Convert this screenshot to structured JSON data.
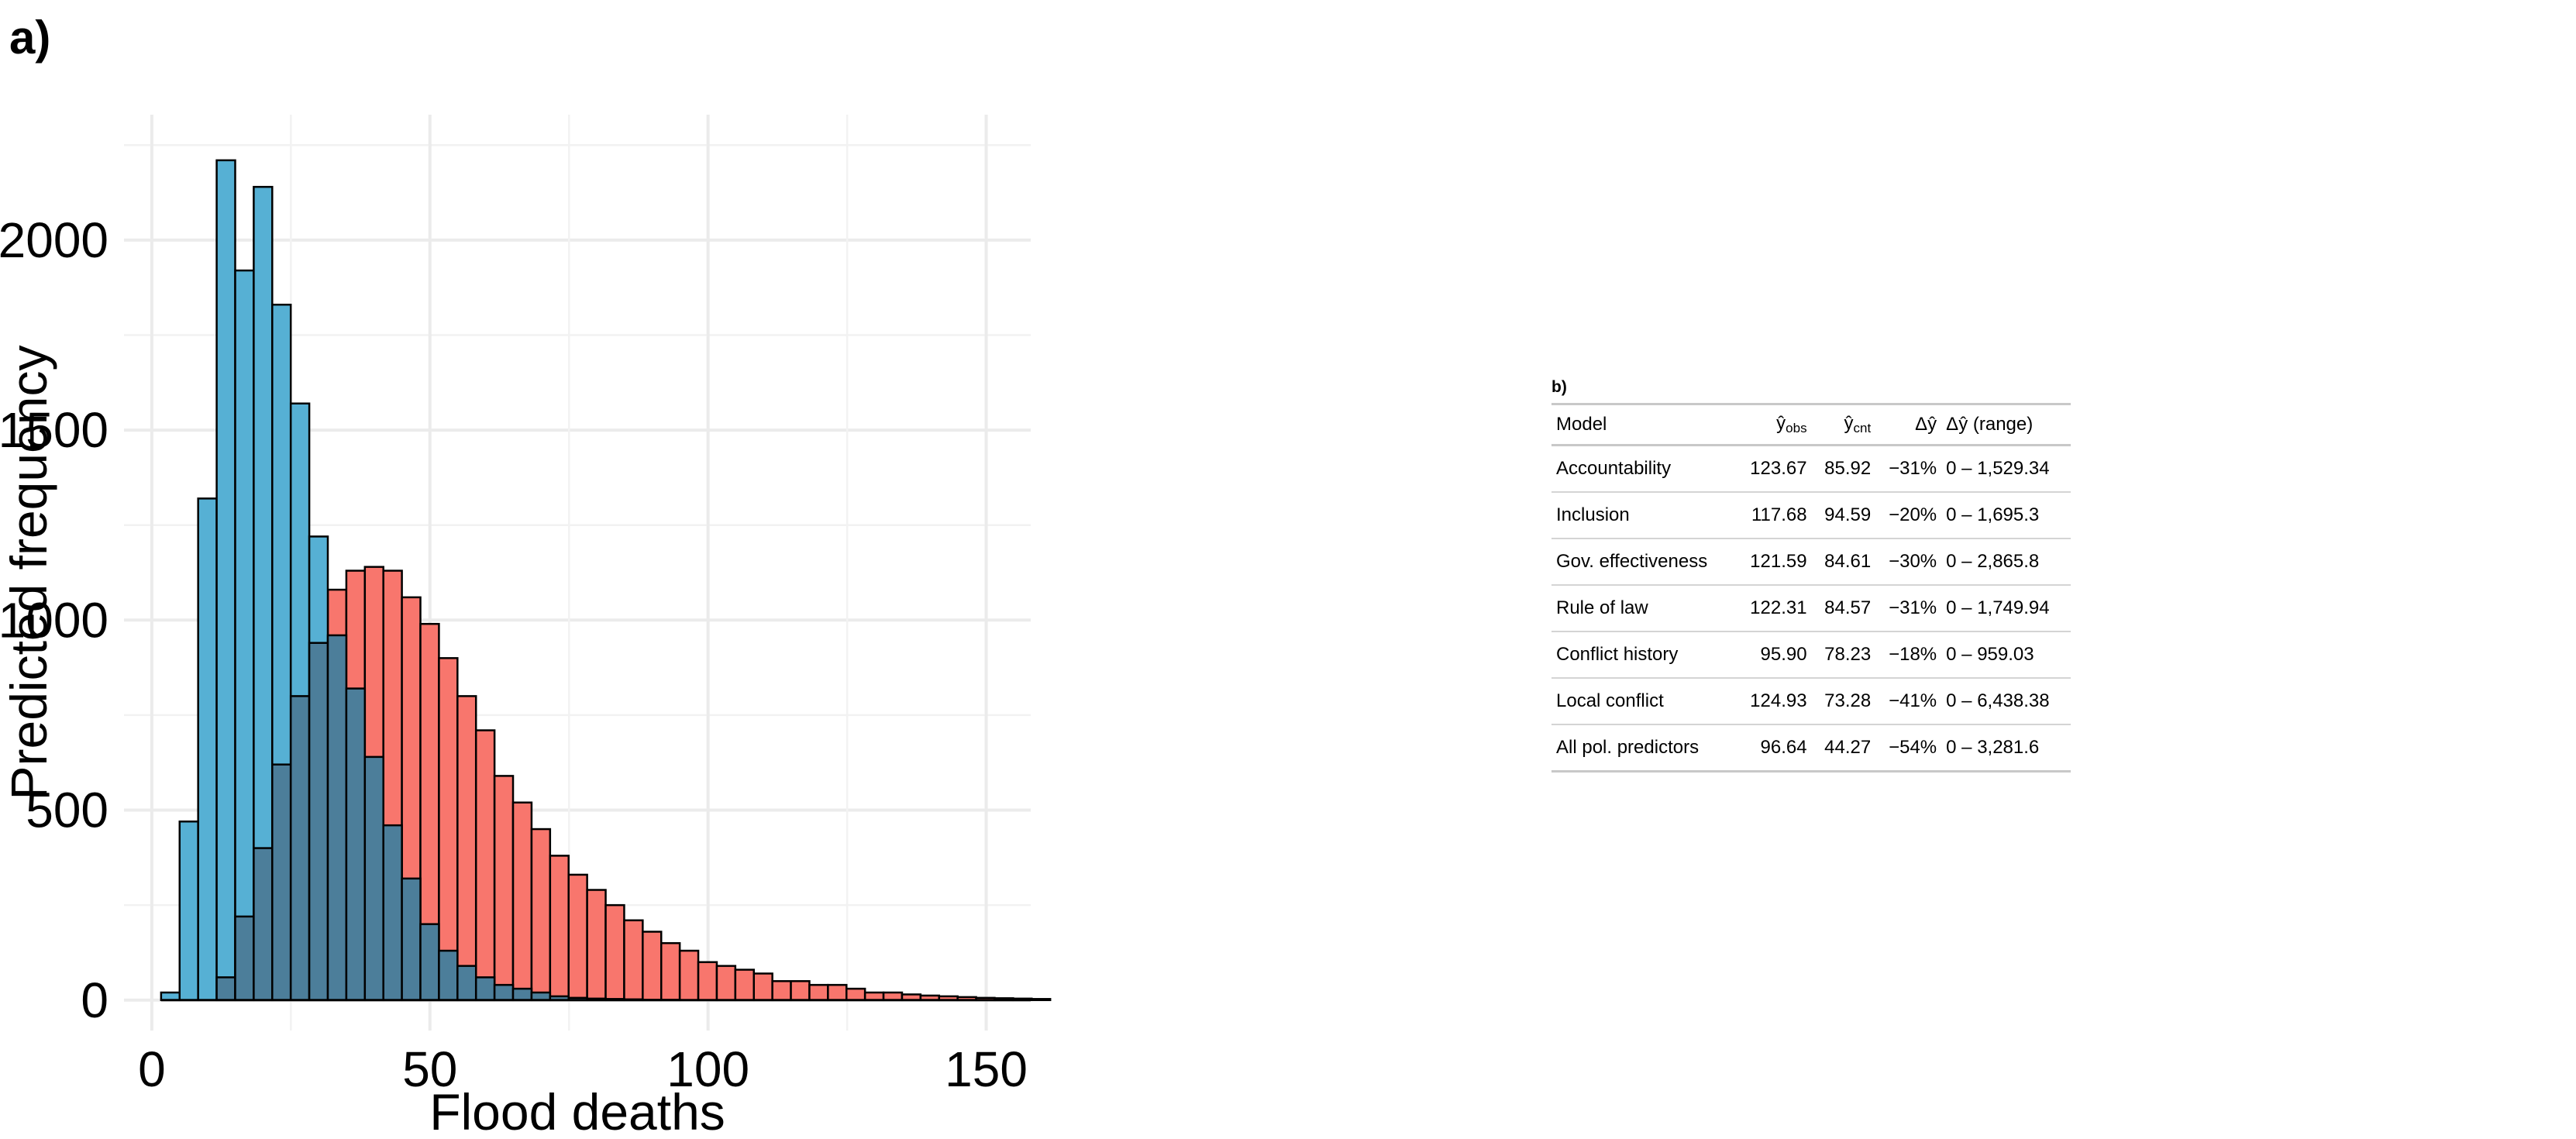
{
  "panel_a": {
    "label": "a)"
  },
  "panel_b": {
    "label": "b)"
  },
  "chart_data": [
    {
      "type": "histogram",
      "xlabel": "Flood deaths",
      "ylabel": "Predicted frequency",
      "xlim": [
        -5,
        158
      ],
      "ylim": [
        -80,
        2330
      ],
      "xticks": [
        0,
        50,
        100,
        150
      ],
      "yticks": [
        0,
        500,
        1000,
        1500,
        2000
      ],
      "grid": true,
      "legend": "none",
      "bin_width": 3.33,
      "bin_start": 1.67,
      "overlap_color": "#4c7e9a",
      "series": [
        {
          "color": "#f8766d",
          "values": [
            0,
            0,
            0,
            60,
            220,
            400,
            620,
            800,
            940,
            1080,
            1130,
            1140,
            1130,
            1060,
            990,
            900,
            800,
            710,
            590,
            520,
            450,
            380,
            330,
            290,
            250,
            210,
            180,
            150,
            130,
            100,
            90,
            80,
            70,
            50,
            50,
            40,
            40,
            30,
            20,
            20,
            15,
            12,
            10,
            8,
            6,
            5,
            4,
            3
          ]
        },
        {
          "color": "#56b0d4",
          "values": [
            20,
            470,
            1320,
            2210,
            1920,
            2140,
            1830,
            1570,
            1220,
            960,
            820,
            640,
            460,
            320,
            200,
            130,
            90,
            60,
            40,
            30,
            20,
            10,
            6,
            4,
            3,
            2,
            1,
            1,
            0,
            0,
            0,
            0,
            0,
            0,
            0,
            0,
            0,
            0,
            0,
            0,
            0,
            0,
            0,
            0,
            0,
            0,
            0,
            0
          ]
        }
      ]
    },
    {
      "type": "table",
      "columns": [
        "Model",
        "ŷobs",
        "ŷcnt",
        "Δŷ",
        "Δŷ (range)"
      ],
      "header": {
        "model": "Model",
        "yhat_obs_base": "ŷ",
        "yhat_obs_sub": "obs",
        "yhat_cnt_base": "ŷ",
        "yhat_cnt_sub": "cnt",
        "delta": "Δŷ",
        "range": "Δŷ (range)"
      },
      "rows": [
        {
          "model": "Accountability",
          "obs": "123.67",
          "cnt": "85.92",
          "delta": "−31%",
          "range": "0 – 1,529.34"
        },
        {
          "model": "Inclusion",
          "obs": "117.68",
          "cnt": "94.59",
          "delta": "−20%",
          "range": "0 – 1,695.3"
        },
        {
          "model": "Gov. effectiveness",
          "obs": "121.59",
          "cnt": "84.61",
          "delta": "−30%",
          "range": "0 – 2,865.8"
        },
        {
          "model": "Rule of law",
          "obs": "122.31",
          "cnt": "84.57",
          "delta": "−31%",
          "range": "0 – 1,749.94"
        },
        {
          "model": "Conflict history",
          "obs": "95.90",
          "cnt": "78.23",
          "delta": "−18%",
          "range": "0 – 959.03"
        },
        {
          "model": "Local conflict",
          "obs": "124.93",
          "cnt": "73.28",
          "delta": "−41%",
          "range": "0 – 6,438.38"
        },
        {
          "model": "All pol. predictors",
          "obs": "96.64",
          "cnt": "44.27",
          "delta": "−54%",
          "range": "0 – 3,281.6"
        }
      ]
    }
  ]
}
